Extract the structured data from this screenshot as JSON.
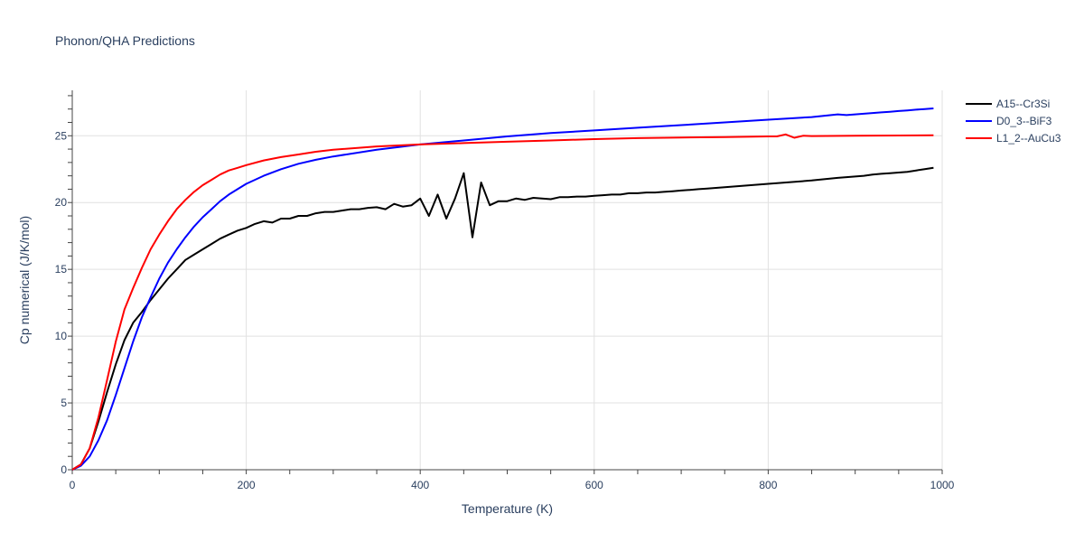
{
  "chart_data": {
    "type": "line",
    "title": "Phonon/QHA Predictions",
    "xlabel": "Temperature (K)",
    "ylabel": "Cp numerical (J/K/mol)",
    "xlim": [
      0,
      1000
    ],
    "ylim": [
      0,
      28.4
    ],
    "xticks": [
      0,
      200,
      400,
      600,
      800,
      1000
    ],
    "yticks": [
      0,
      5,
      10,
      15,
      20,
      25
    ],
    "grid": true,
    "legend_position": "top-right",
    "series": [
      {
        "name": "A15--Cr3Si",
        "color": "#000000",
        "x": [
          0,
          10,
          20,
          30,
          40,
          50,
          60,
          70,
          80,
          90,
          100,
          110,
          120,
          130,
          140,
          150,
          160,
          170,
          180,
          190,
          200,
          210,
          220,
          230,
          240,
          250,
          260,
          270,
          280,
          290,
          300,
          310,
          320,
          330,
          340,
          350,
          360,
          370,
          380,
          390,
          400,
          410,
          420,
          430,
          440,
          450,
          460,
          470,
          480,
          490,
          500,
          510,
          520,
          530,
          540,
          550,
          560,
          570,
          580,
          590,
          600,
          610,
          620,
          630,
          640,
          650,
          660,
          670,
          680,
          690,
          700,
          710,
          720,
          730,
          740,
          750,
          760,
          770,
          780,
          790,
          800,
          850,
          880,
          890,
          900,
          910,
          920,
          930,
          940,
          950,
          960,
          970,
          980,
          990
        ],
        "y": [
          0,
          0.4,
          1.6,
          3.6,
          5.8,
          7.9,
          9.7,
          11.0,
          11.8,
          12.7,
          13.5,
          14.3,
          15.0,
          15.7,
          16.1,
          16.5,
          16.9,
          17.3,
          17.6,
          17.9,
          18.1,
          18.4,
          18.6,
          18.5,
          18.8,
          18.8,
          19.0,
          19.0,
          19.2,
          19.3,
          19.3,
          19.4,
          19.5,
          19.5,
          19.6,
          19.65,
          19.5,
          19.9,
          19.7,
          19.8,
          20.3,
          19.0,
          20.6,
          18.8,
          20.3,
          22.2,
          17.4,
          21.5,
          19.8,
          20.1,
          20.1,
          20.3,
          20.2,
          20.35,
          20.3,
          20.25,
          20.4,
          20.4,
          20.45,
          20.45,
          20.5,
          20.55,
          20.6,
          20.6,
          20.7,
          20.7,
          20.75,
          20.75,
          20.8,
          20.85,
          20.9,
          20.95,
          21.0,
          21.05,
          21.1,
          21.15,
          21.2,
          21.25,
          21.3,
          21.35,
          21.4,
          21.65,
          21.85,
          21.9,
          21.95,
          22.0,
          22.1,
          22.15,
          22.2,
          22.25,
          22.3,
          22.4,
          22.5,
          22.6
        ]
      },
      {
        "name": "D0_3--BiF3",
        "color": "#0000ff",
        "x": [
          0,
          10,
          20,
          30,
          40,
          50,
          60,
          70,
          80,
          90,
          100,
          110,
          120,
          130,
          140,
          150,
          160,
          170,
          180,
          190,
          200,
          220,
          240,
          260,
          280,
          300,
          350,
          400,
          450,
          500,
          550,
          600,
          650,
          700,
          750,
          800,
          850,
          880,
          890,
          900,
          910,
          920,
          930,
          940,
          950,
          960,
          970,
          980,
          990
        ],
        "y": [
          0,
          0.3,
          1.0,
          2.2,
          3.7,
          5.6,
          7.6,
          9.6,
          11.4,
          12.9,
          14.3,
          15.5,
          16.5,
          17.4,
          18.2,
          18.9,
          19.5,
          20.1,
          20.6,
          21.0,
          21.4,
          22.0,
          22.5,
          22.9,
          23.2,
          23.45,
          23.95,
          24.35,
          24.65,
          24.95,
          25.2,
          25.4,
          25.6,
          25.8,
          26.0,
          26.2,
          26.4,
          26.6,
          26.55,
          26.6,
          26.65,
          26.7,
          26.75,
          26.8,
          26.85,
          26.9,
          26.95,
          27.0,
          27.05
        ]
      },
      {
        "name": "L1_2--AuCu3",
        "color": "#ff0000",
        "x": [
          0,
          10,
          20,
          30,
          40,
          50,
          60,
          70,
          80,
          90,
          100,
          110,
          120,
          130,
          140,
          150,
          160,
          170,
          180,
          190,
          200,
          220,
          240,
          260,
          280,
          300,
          350,
          400,
          450,
          500,
          550,
          600,
          650,
          700,
          750,
          800,
          810,
          820,
          830,
          840,
          850,
          900,
          950,
          990
        ],
        "y": [
          0,
          0.4,
          1.6,
          3.9,
          6.7,
          9.6,
          12.0,
          13.6,
          15.1,
          16.5,
          17.6,
          18.6,
          19.5,
          20.2,
          20.8,
          21.3,
          21.7,
          22.1,
          22.4,
          22.6,
          22.8,
          23.15,
          23.4,
          23.6,
          23.8,
          23.95,
          24.2,
          24.35,
          24.45,
          24.55,
          24.65,
          24.75,
          24.82,
          24.87,
          24.9,
          24.95,
          24.95,
          25.1,
          24.85,
          25.0,
          24.98,
          25.0,
          25.02,
          25.04
        ]
      }
    ]
  }
}
